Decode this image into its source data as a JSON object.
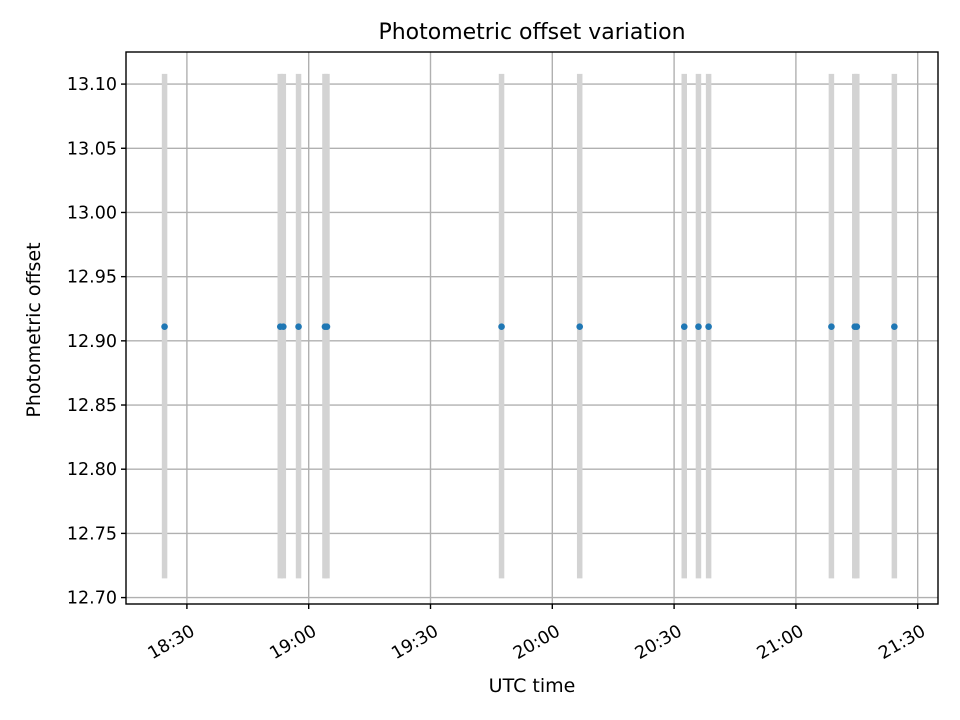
{
  "chart_data": {
    "type": "scatter",
    "title": "Photometric offset variation",
    "xlabel": "UTC time",
    "ylabel": "Photometric offset",
    "x_axis_type": "time",
    "xlim": [
      "18:15",
      "21:35"
    ],
    "ylim": [
      12.695,
      13.125
    ],
    "x_ticks": [
      "18:30",
      "19:00",
      "19:30",
      "20:00",
      "20:30",
      "21:00",
      "21:30"
    ],
    "y_ticks": [
      "12.70",
      "12.75",
      "12.80",
      "12.85",
      "12.90",
      "12.95",
      "13.00",
      "13.05",
      "13.10"
    ],
    "grid": true,
    "error_bar_range": [
      12.715,
      13.108
    ],
    "colors": {
      "point": "#1f77b4",
      "error_bar": "#d3d3d3",
      "grid": "#b0b0b0"
    },
    "points": [
      {
        "x": "18:24:30",
        "y": 12.911
      },
      {
        "x": "18:53:00",
        "y": 12.911
      },
      {
        "x": "18:53:45",
        "y": 12.911
      },
      {
        "x": "18:57:30",
        "y": 12.911
      },
      {
        "x": "19:04:00",
        "y": 12.911
      },
      {
        "x": "19:04:30",
        "y": 12.911
      },
      {
        "x": "19:47:30",
        "y": 12.911
      },
      {
        "x": "20:06:45",
        "y": 12.911
      },
      {
        "x": "20:32:30",
        "y": 12.911
      },
      {
        "x": "20:36:00",
        "y": 12.911
      },
      {
        "x": "20:38:30",
        "y": 12.911
      },
      {
        "x": "21:08:45",
        "y": 12.911
      },
      {
        "x": "21:14:30",
        "y": 12.911
      },
      {
        "x": "21:15:00",
        "y": 12.911
      },
      {
        "x": "21:24:15",
        "y": 12.911
      }
    ]
  }
}
